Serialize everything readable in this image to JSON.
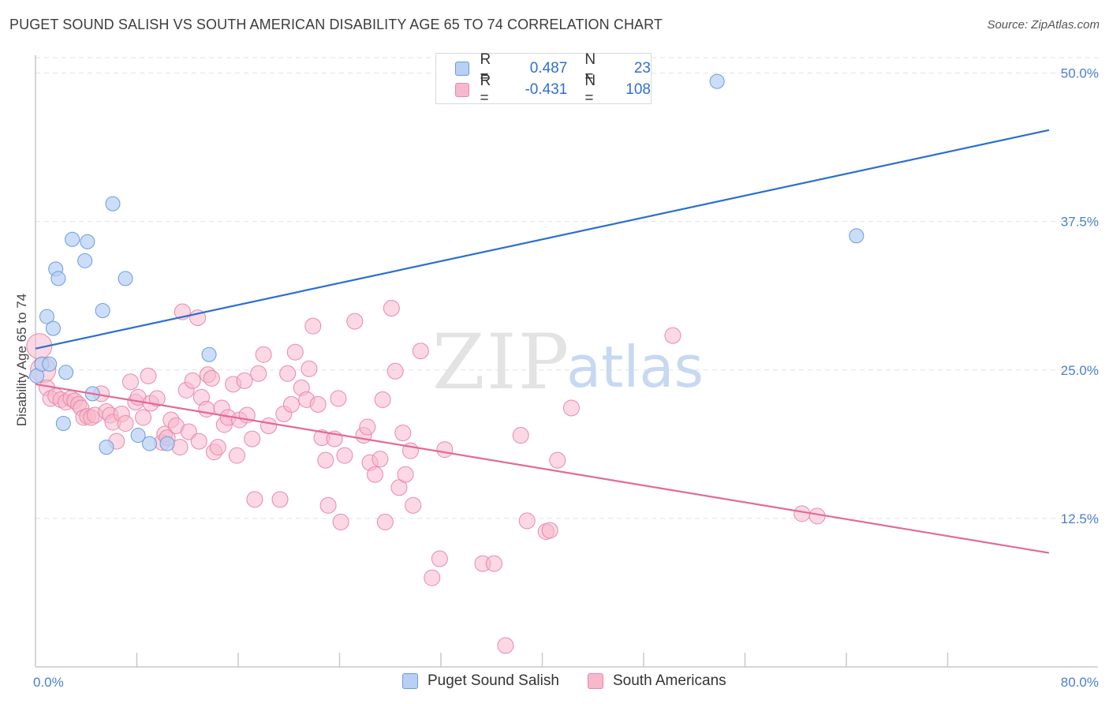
{
  "header": {
    "title": "PUGET SOUND SALISH VS SOUTH AMERICAN DISABILITY AGE 65 TO 74 CORRELATION CHART",
    "source": "Source: ZipAtlas.com"
  },
  "legend": {
    "rows": [
      {
        "r_label": "R =",
        "r_value": "0.487",
        "n_label": "N =",
        "n_value": "23"
      },
      {
        "r_label": "R =",
        "r_value": "-0.431",
        "n_label": "N =",
        "n_value": "108"
      }
    ]
  },
  "bottom_legend": {
    "series1": "Puget Sound Salish",
    "series2": "South Americans"
  },
  "watermark": {
    "zip": "ZIP",
    "atlas": "atlas"
  },
  "colors": {
    "blue_fill": "#b7d0f3",
    "blue_stroke": "#6b9ae0",
    "blue_line": "#2a6fd0",
    "pink_fill": "#f7b8cc",
    "pink_stroke": "#e88aa8",
    "pink_line": "#e26a96",
    "tick_label": "#4a7fcc",
    "grid": "#e2e2e2"
  },
  "chart_data": {
    "type": "scatter",
    "title": "PUGET SOUND SALISH VS SOUTH AMERICAN DISABILITY AGE 65 TO 74 CORRELATION CHART",
    "xlabel": "",
    "ylabel": "Disability Age 65 to 74",
    "xlim": [
      0,
      80
    ],
    "ylim": [
      0,
      51.5
    ],
    "x_tick_labels": [
      "0.0%",
      "80.0%"
    ],
    "y_ticks": [
      12.5,
      25.0,
      37.5,
      50.0
    ],
    "y_tick_labels": [
      "12.5%",
      "25.0%",
      "37.5%",
      "50.0%"
    ],
    "grid": true,
    "legend_position": "top-center",
    "series": [
      {
        "name": "Puget Sound Salish",
        "r": 0.487,
        "n": 23,
        "trend": {
          "x": [
            0,
            80
          ],
          "y": [
            26.8,
            45.2
          ]
        },
        "points": [
          [
            0.1,
            24.5
          ],
          [
            0.5,
            25.5
          ],
          [
            0.9,
            29.5
          ],
          [
            1.1,
            25.5
          ],
          [
            1.4,
            28.5
          ],
          [
            1.6,
            33.5
          ],
          [
            1.8,
            32.7
          ],
          [
            2.2,
            20.5
          ],
          [
            2.4,
            24.8
          ],
          [
            2.9,
            36.0
          ],
          [
            3.9,
            34.2
          ],
          [
            4.1,
            35.8
          ],
          [
            4.5,
            23.0
          ],
          [
            5.3,
            30.0
          ],
          [
            5.6,
            18.5
          ],
          [
            6.1,
            39.0
          ],
          [
            7.1,
            32.7
          ],
          [
            8.1,
            19.5
          ],
          [
            9.0,
            18.8
          ],
          [
            10.4,
            18.8
          ],
          [
            13.7,
            26.3
          ],
          [
            53.8,
            49.3
          ],
          [
            64.8,
            36.3
          ]
        ]
      },
      {
        "name": "South Americans",
        "r": -0.431,
        "n": 108,
        "trend": {
          "x": [
            0,
            80
          ],
          "y": [
            23.8,
            9.6
          ]
        },
        "points": [
          [
            0.3,
            27.0
          ],
          [
            0.6,
            25.0
          ],
          [
            0.9,
            23.5
          ],
          [
            1.2,
            22.6
          ],
          [
            1.6,
            22.8
          ],
          [
            2.0,
            22.5
          ],
          [
            2.4,
            22.3
          ],
          [
            2.8,
            22.6
          ],
          [
            3.1,
            22.4
          ],
          [
            3.4,
            22.1
          ],
          [
            3.6,
            21.8
          ],
          [
            3.8,
            21.0
          ],
          [
            4.1,
            21.1
          ],
          [
            4.4,
            21.0
          ],
          [
            4.7,
            21.2
          ],
          [
            5.2,
            23.0
          ],
          [
            5.6,
            21.5
          ],
          [
            5.9,
            21.2
          ],
          [
            6.1,
            20.6
          ],
          [
            6.4,
            19.0
          ],
          [
            6.8,
            21.3
          ],
          [
            7.1,
            20.5
          ],
          [
            7.5,
            24.0
          ],
          [
            7.9,
            22.3
          ],
          [
            8.1,
            22.7
          ],
          [
            8.5,
            21.0
          ],
          [
            8.9,
            24.5
          ],
          [
            9.1,
            22.2
          ],
          [
            9.6,
            22.6
          ],
          [
            10.0,
            18.9
          ],
          [
            10.2,
            19.6
          ],
          [
            10.4,
            19.3
          ],
          [
            10.7,
            20.8
          ],
          [
            11.1,
            20.3
          ],
          [
            11.4,
            18.5
          ],
          [
            11.6,
            29.9
          ],
          [
            11.9,
            23.3
          ],
          [
            12.1,
            19.8
          ],
          [
            12.4,
            24.1
          ],
          [
            12.8,
            29.4
          ],
          [
            12.9,
            19.0
          ],
          [
            13.1,
            22.7
          ],
          [
            13.5,
            21.7
          ],
          [
            13.6,
            24.6
          ],
          [
            13.9,
            24.3
          ],
          [
            14.1,
            18.1
          ],
          [
            14.4,
            18.5
          ],
          [
            14.7,
            21.8
          ],
          [
            14.9,
            20.4
          ],
          [
            15.2,
            21.0
          ],
          [
            15.6,
            23.8
          ],
          [
            15.9,
            17.8
          ],
          [
            16.1,
            20.8
          ],
          [
            16.5,
            24.1
          ],
          [
            16.7,
            21.2
          ],
          [
            17.1,
            19.2
          ],
          [
            17.3,
            14.1
          ],
          [
            17.6,
            24.7
          ],
          [
            18.0,
            26.3
          ],
          [
            18.4,
            20.3
          ],
          [
            19.3,
            14.1
          ],
          [
            19.6,
            21.3
          ],
          [
            19.9,
            24.7
          ],
          [
            20.2,
            22.1
          ],
          [
            20.5,
            26.5
          ],
          [
            21.0,
            23.5
          ],
          [
            21.4,
            22.5
          ],
          [
            21.6,
            25.1
          ],
          [
            21.9,
            28.7
          ],
          [
            22.3,
            22.1
          ],
          [
            22.6,
            19.3
          ],
          [
            22.9,
            17.4
          ],
          [
            23.1,
            13.6
          ],
          [
            23.6,
            19.2
          ],
          [
            23.9,
            22.6
          ],
          [
            24.1,
            12.2
          ],
          [
            24.4,
            17.8
          ],
          [
            25.2,
            29.1
          ],
          [
            25.9,
            19.5
          ],
          [
            26.2,
            20.2
          ],
          [
            26.4,
            17.2
          ],
          [
            26.8,
            16.2
          ],
          [
            27.2,
            17.5
          ],
          [
            27.4,
            22.5
          ],
          [
            27.6,
            12.2
          ],
          [
            28.1,
            30.2
          ],
          [
            28.4,
            24.9
          ],
          [
            28.7,
            15.1
          ],
          [
            29.0,
            19.7
          ],
          [
            29.2,
            16.2
          ],
          [
            29.6,
            18.2
          ],
          [
            29.8,
            13.6
          ],
          [
            30.4,
            26.6
          ],
          [
            31.3,
            7.5
          ],
          [
            31.9,
            9.1
          ],
          [
            32.3,
            18.3
          ],
          [
            35.3,
            8.7
          ],
          [
            36.2,
            8.7
          ],
          [
            37.1,
            1.8
          ],
          [
            38.3,
            19.5
          ],
          [
            38.8,
            12.3
          ],
          [
            40.3,
            11.4
          ],
          [
            40.6,
            11.5
          ],
          [
            41.2,
            17.4
          ],
          [
            42.3,
            21.8
          ],
          [
            50.3,
            27.9
          ],
          [
            61.7,
            12.7
          ],
          [
            60.5,
            12.9
          ]
        ]
      }
    ]
  }
}
